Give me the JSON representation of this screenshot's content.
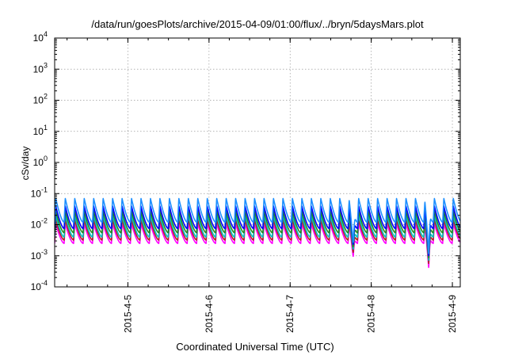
{
  "chart_data": {
    "type": "line",
    "title": "/data/run/goesPlots/archive/2015-04-09/01:00/flux/../bryn/5daysMars.plot",
    "xlabel": "Coordinated Universal Time (UTC)",
    "ylabel": "cSv/day",
    "y_scale": "log",
    "ylim": [
      0.0001,
      10000
    ],
    "xlim": [
      "2015-04-04T02:20",
      "2015-04-09T02:20"
    ],
    "grid": true,
    "legend": "none",
    "y_ticks": [
      {
        "base": "10",
        "exp": "-4",
        "value": 0.0001
      },
      {
        "base": "10",
        "exp": "-3",
        "value": 0.001
      },
      {
        "base": "10",
        "exp": "-2",
        "value": 0.01
      },
      {
        "base": "10",
        "exp": "-1",
        "value": 0.1
      },
      {
        "base": "10",
        "exp": "0",
        "value": 1
      },
      {
        "base": "10",
        "exp": "1",
        "value": 10
      },
      {
        "base": "10",
        "exp": "2",
        "value": 100
      },
      {
        "base": "10",
        "exp": "3",
        "value": 1000
      },
      {
        "base": "10",
        "exp": "4",
        "value": 10000
      }
    ],
    "x_ticks": [
      {
        "label": "2015-4-5",
        "value": "2015-04-05T00:00"
      },
      {
        "label": "2015-4-6",
        "value": "2015-04-06T00:00"
      },
      {
        "label": "2015-4-7",
        "value": "2015-04-07T00:00"
      },
      {
        "label": "2015-4-8",
        "value": "2015-04-08T00:00"
      },
      {
        "label": "2015-4-9",
        "value": "2015-04-09T00:00"
      }
    ],
    "sawtooth_period_hours": 2.8,
    "series": [
      {
        "color": "#ff00ff",
        "trough": 0.0025,
        "peak": 0.011
      },
      {
        "color": "#b22222",
        "trough": 0.0032,
        "peak": 0.015
      },
      {
        "color": "#00bfbf",
        "trough": 0.004,
        "peak": 0.02
      },
      {
        "color": "#228b22",
        "trough": 0.0055,
        "peak": 0.028
      },
      {
        "color": "#0000ff",
        "trough": 0.0075,
        "peak": 0.04
      },
      {
        "color": "#1e90ff",
        "trough": 0.012,
        "peak": 0.07
      }
    ],
    "dips": [
      {
        "time": "2015-04-07T18:40",
        "min_value": 0.0009
      },
      {
        "time": "2015-04-08T17:00",
        "min_value": 0.0004
      }
    ]
  }
}
